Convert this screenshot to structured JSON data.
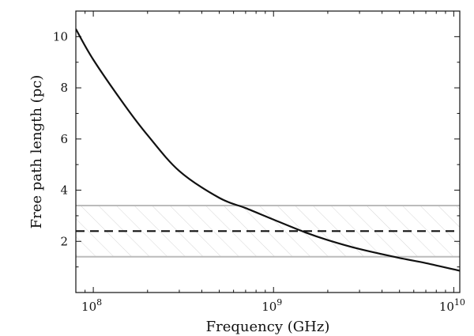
{
  "chart_data": {
    "type": "line",
    "title": "",
    "xlabel": "Frequency (GHz)",
    "ylabel": "Free path length (pc)",
    "xscale": "log",
    "xlim": [
      80000000,
      10800000000
    ],
    "ylim": [
      0,
      11
    ],
    "grid": false,
    "x_ticks": [
      {
        "value": 100000000,
        "base": "10",
        "exp": "8"
      },
      {
        "value": 1000000000,
        "base": "10",
        "exp": "9"
      },
      {
        "value": 10000000000,
        "base": "10",
        "exp": "10"
      }
    ],
    "y_ticks": [
      {
        "value": 2,
        "label": "2"
      },
      {
        "value": 4,
        "label": "4"
      },
      {
        "value": 6,
        "label": "6"
      },
      {
        "value": 8,
        "label": "8"
      },
      {
        "value": 10,
        "label": "10"
      }
    ],
    "series": [
      {
        "style": "solid",
        "color": "#111111",
        "x": [
          80000000,
          100000000,
          150000000,
          200000000,
          300000000,
          500000000,
          700000000,
          1000000000,
          1500000000,
          2000000000,
          3000000000,
          5000000000,
          7000000000,
          10800000000
        ],
        "y": [
          10.3,
          9.1,
          7.3,
          6.15,
          4.75,
          3.7,
          3.3,
          2.85,
          2.35,
          2.05,
          1.7,
          1.35,
          1.15,
          0.85
        ]
      }
    ],
    "reference_lines": [
      {
        "y": 2.4,
        "style": "dashed",
        "color": "#111111"
      },
      {
        "y": 3.4,
        "style": "solid",
        "color": "#bbbbbb"
      },
      {
        "y": 1.4,
        "style": "solid",
        "color": "#bbbbbb"
      }
    ],
    "shaded_band": {
      "y0": 1.4,
      "y1": 3.4,
      "pattern": "hatched",
      "color": "#d9d9d9"
    }
  }
}
